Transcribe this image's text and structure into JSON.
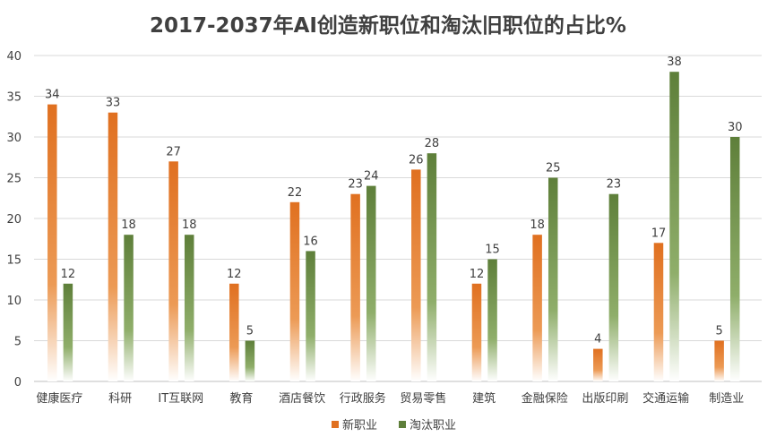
{
  "chart_data": {
    "type": "bar",
    "title": "2017-2037年AI创造新职位和淘汰旧职位的占比%",
    "xlabel": "",
    "ylabel": "",
    "ylim": [
      0,
      40
    ],
    "yticks": [
      "0",
      "5",
      "10",
      "15",
      "20",
      "25",
      "30",
      "35",
      "40"
    ],
    "grid": true,
    "legend_position": "bottom",
    "categories": [
      "健康医疗",
      "科研",
      "IT互联网",
      "教育",
      "酒店餐饮",
      "行政服务",
      "贸易零售",
      "建筑",
      "金融保险",
      "出版印刷",
      "交通运输",
      "制造业"
    ],
    "series": [
      {
        "name": "新职业",
        "color": "#E07020",
        "values": [
          34,
          33,
          27,
          12,
          22,
          23,
          26,
          12,
          18,
          4,
          17,
          5
        ]
      },
      {
        "name": "淘汰职业",
        "color": "#5E7F3A",
        "values": [
          12,
          18,
          18,
          5,
          16,
          24,
          28,
          15,
          25,
          23,
          38,
          30
        ]
      }
    ]
  }
}
